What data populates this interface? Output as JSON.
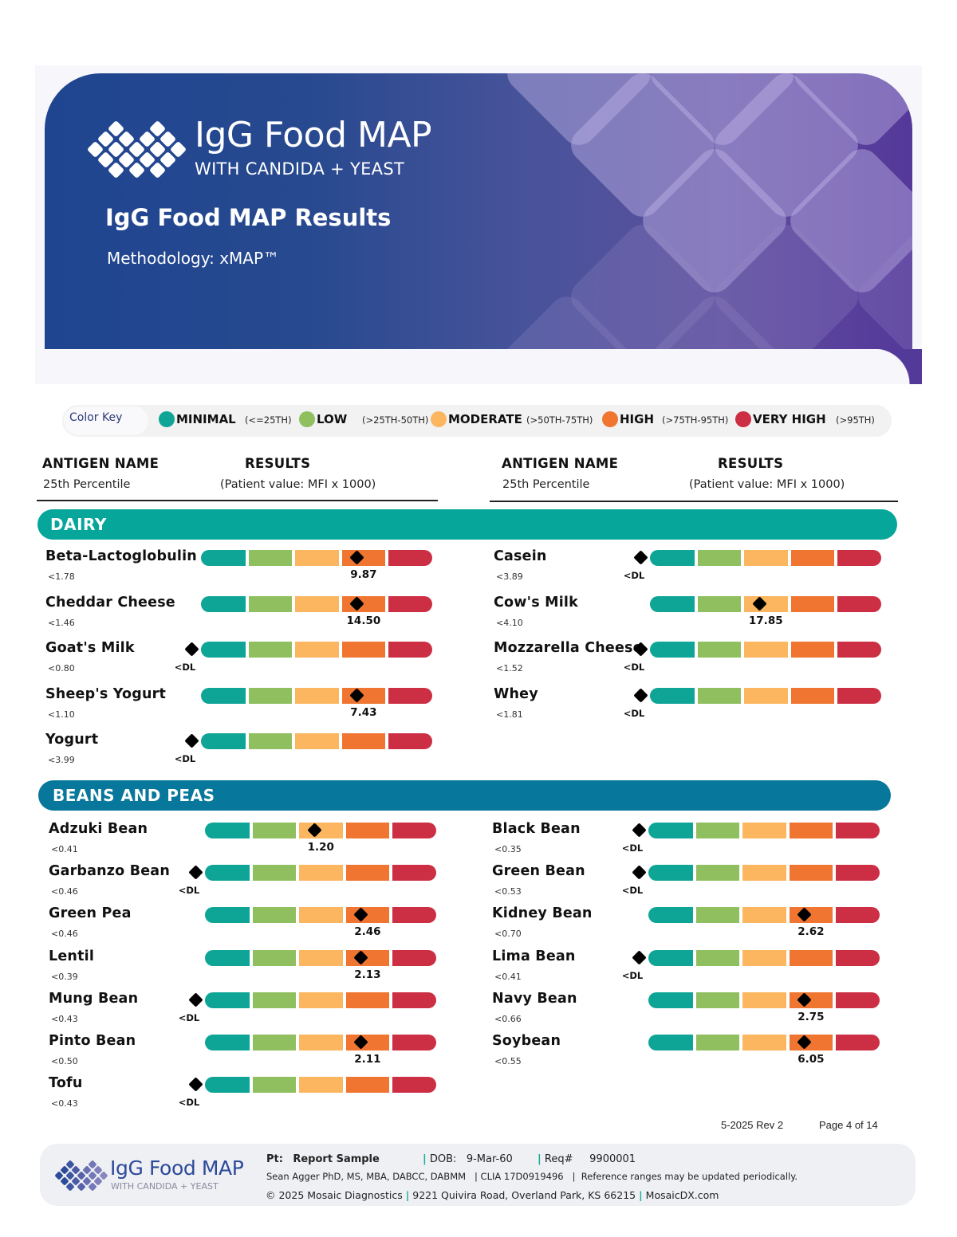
{
  "header": {
    "brand_title": "IgG Food MAP",
    "brand_subtitle": "WITH CANDIDA + YEAST",
    "report_title": "IgG Food MAP Results",
    "methodology": "Methodology: xMAP™"
  },
  "color_key": {
    "label": "Color Key",
    "items": [
      {
        "name": "MINIMAL",
        "range": "(<=25TH)",
        "color": "#0ea597"
      },
      {
        "name": "LOW",
        "range": "(>25TH-50TH)",
        "color": "#8fbf5f"
      },
      {
        "name": "MODERATE",
        "range": "(>50TH-75TH)",
        "color": "#fbb65f"
      },
      {
        "name": "HIGH",
        "range": "(>75TH-95TH)",
        "color": "#ef7530"
      },
      {
        "name": "VERY HIGH",
        "range": "(>95TH)",
        "color": "#cc2e44"
      }
    ]
  },
  "table_header": {
    "antigen_name": "ANTIGEN NAME",
    "percentile": "25th Percentile",
    "results": "RESULTS",
    "results_sub": "(Patient value: MFI x 1000)"
  },
  "scale_colors": [
    "#0ea597",
    "#8fbf5f",
    "#fbb65f",
    "#ef7530",
    "#cc2e44"
  ],
  "sections": [
    {
      "title": "DAIRY",
      "color": "#06a69b",
      "left": [
        {
          "name": "Beta-Lactoglobulin",
          "pct25": "<1.78",
          "result": "9.87",
          "level": "HIGH"
        },
        {
          "name": "Cheddar Cheese",
          "pct25": "<1.46",
          "result": "14.50",
          "level": "HIGH"
        },
        {
          "name": "Goat's Milk",
          "pct25": "<0.80",
          "result": "<DL",
          "level": "BELOW_DL"
        },
        {
          "name": "Sheep's Yogurt",
          "pct25": "<1.10",
          "result": "7.43",
          "level": "HIGH"
        },
        {
          "name": "Yogurt",
          "pct25": "<3.99",
          "result": "<DL",
          "level": "BELOW_DL"
        }
      ],
      "right": [
        {
          "name": "Casein",
          "pct25": "<3.89",
          "result": "<DL",
          "level": "BELOW_DL"
        },
        {
          "name": "Cow's Milk",
          "pct25": "<4.10",
          "result": "17.85",
          "level": "MODERATE"
        },
        {
          "name": "Mozzarella Cheese",
          "pct25": "<1.52",
          "result": "<DL",
          "level": "BELOW_DL"
        },
        {
          "name": "Whey",
          "pct25": "<1.81",
          "result": "<DL",
          "level": "BELOW_DL"
        }
      ]
    },
    {
      "title": "BEANS AND PEAS",
      "color": "#07779b",
      "left": [
        {
          "name": "Adzuki Bean",
          "pct25": "<0.41",
          "result": "1.20",
          "level": "MODERATE"
        },
        {
          "name": "Garbanzo Bean",
          "pct25": "<0.46",
          "result": "<DL",
          "level": "BELOW_DL"
        },
        {
          "name": "Green Pea",
          "pct25": "<0.46",
          "result": "2.46",
          "level": "HIGH"
        },
        {
          "name": "Lentil",
          "pct25": "<0.39",
          "result": "2.13",
          "level": "HIGH"
        },
        {
          "name": "Mung Bean",
          "pct25": "<0.43",
          "result": "<DL",
          "level": "BELOW_DL"
        },
        {
          "name": "Pinto Bean",
          "pct25": "<0.50",
          "result": "2.11",
          "level": "HIGH"
        },
        {
          "name": "Tofu",
          "pct25": "<0.43",
          "result": "<DL",
          "level": "BELOW_DL"
        }
      ],
      "right": [
        {
          "name": "Black Bean",
          "pct25": "<0.35",
          "result": "<DL",
          "level": "BELOW_DL"
        },
        {
          "name": "Green Bean",
          "pct25": "<0.53",
          "result": "<DL",
          "level": "BELOW_DL"
        },
        {
          "name": "Kidney Bean",
          "pct25": "<0.70",
          "result": "2.62",
          "level": "HIGH"
        },
        {
          "name": "Lima Bean",
          "pct25": "<0.41",
          "result": "<DL",
          "level": "BELOW_DL"
        },
        {
          "name": "Navy Bean",
          "pct25": "<0.66",
          "result": "2.75",
          "level": "HIGH"
        },
        {
          "name": "Soybean",
          "pct25": "<0.55",
          "result": "6.05",
          "level": "HIGH"
        }
      ]
    }
  ],
  "page_info": {
    "revision": "5-2025 Rev 2",
    "page": "Page 4 of 14"
  },
  "footer": {
    "brand_title": "IgG Food MAP",
    "brand_subtitle": "WITH CANDIDA + YEAST",
    "pt_label": "Pt:",
    "pt_value": "Report Sample",
    "dob_label": "DOB:",
    "dob_value": "9-Mar-60",
    "req_label": "Req#",
    "req_value": "9900001",
    "director": "Sean Agger PhD, MS, MBA, DABCC, DABMM",
    "clia": "CLIA 17D0919496",
    "disclaimer": "Reference ranges may be updated periodically.",
    "copyright": "© 2025 Mosaic Diagnostics",
    "address": "9221 Quivira Road, Overland Park, KS 66215",
    "website": "MosaicDX.com"
  }
}
